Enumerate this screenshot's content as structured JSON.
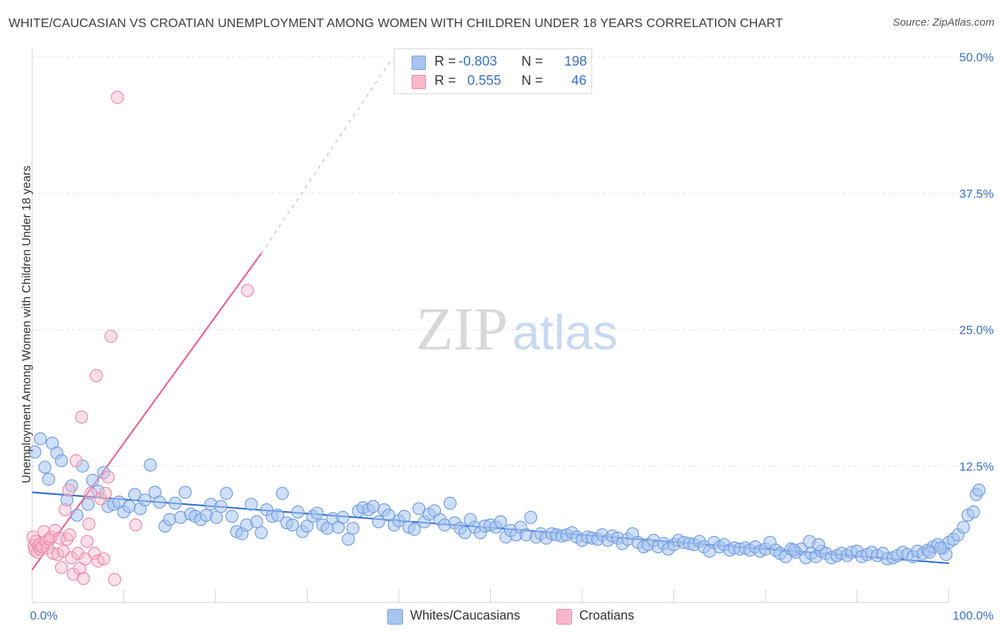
{
  "title": "WHITE/CAUCASIAN VS CROATIAN UNEMPLOYMENT AMONG WOMEN WITH CHILDREN UNDER 18 YEARS CORRELATION CHART",
  "source": "Source: ZipAtlas.com",
  "watermark": {
    "part1": "ZIP",
    "part2": "atlas"
  },
  "legend": {
    "r_label": "R =",
    "n_label": "N =",
    "rows": [
      {
        "r": "-0.803",
        "n": "198",
        "color": "#a8c4f0",
        "border": "#6f9be0"
      },
      {
        "r": "0.555",
        "n": "46",
        "color": "#f7b8cb",
        "border": "#ea8aa8"
      }
    ]
  },
  "bottom_legend": {
    "series1": "Whites/Caucasians",
    "series2": "Croatians"
  },
  "chart_data": {
    "type": "scatter",
    "title": "WHITE/CAUCASIAN VS CROATIAN UNEMPLOYMENT AMONG WOMEN WITH CHILDREN UNDER 18 YEARS CORRELATION CHART",
    "xlabel": "",
    "ylabel": "Unemployment Among Women with Children Under 18 years",
    "xlim": [
      0,
      100
    ],
    "ylim": [
      0,
      52
    ],
    "x_tick_labels": [
      "0.0%",
      "100.0%"
    ],
    "y_ticks": [
      12.5,
      25.0,
      37.5,
      50.0
    ],
    "y_tick_labels": [
      "12.5%",
      "25.0%",
      "37.5%",
      "50.0%"
    ],
    "grid": "horizontal dashed",
    "legend_position": "top-center",
    "colors": {
      "blue": "#6f9be0",
      "blue_fill": "#a8c4f0",
      "pink": "#ea8aa8",
      "pink_fill": "#f7b8cb",
      "blue_line": "#2f6fcf",
      "pink_line": "#e8618f",
      "tick_label": "#3b6fc4"
    },
    "series": [
      {
        "name": "Whites/Caucasians",
        "trend": {
          "x": [
            0,
            100
          ],
          "y": [
            10.1,
            3.6
          ]
        },
        "points": [
          [
            0.3,
            13.8
          ],
          [
            0.9,
            15.0
          ],
          [
            1.4,
            12.4
          ],
          [
            1.8,
            11.3
          ],
          [
            2.2,
            14.6
          ],
          [
            2.7,
            13.7
          ],
          [
            3.2,
            13.0
          ],
          [
            3.8,
            9.4
          ],
          [
            4.3,
            10.7
          ],
          [
            4.9,
            8.0
          ],
          [
            5.5,
            12.5
          ],
          [
            6.1,
            9.0
          ],
          [
            6.6,
            11.2
          ],
          [
            7.2,
            10.2
          ],
          [
            7.8,
            11.9
          ],
          [
            8.3,
            8.8
          ],
          [
            8.9,
            9.0
          ],
          [
            9.5,
            9.2
          ],
          [
            10.0,
            8.3
          ],
          [
            10.6,
            8.8
          ],
          [
            11.2,
            9.9
          ],
          [
            11.8,
            8.6
          ],
          [
            12.3,
            9.4
          ],
          [
            12.9,
            12.6
          ],
          [
            13.4,
            10.1
          ],
          [
            13.9,
            9.2
          ],
          [
            14.5,
            7.0
          ],
          [
            15.0,
            7.6
          ],
          [
            15.6,
            9.1
          ],
          [
            16.2,
            7.8
          ],
          [
            16.7,
            10.1
          ],
          [
            17.3,
            8.1
          ],
          [
            17.8,
            7.9
          ],
          [
            18.4,
            7.6
          ],
          [
            19.0,
            8.0
          ],
          [
            19.5,
            9.0
          ],
          [
            20.1,
            7.8
          ],
          [
            20.6,
            8.8
          ],
          [
            21.2,
            10.0
          ],
          [
            21.8,
            7.9
          ],
          [
            22.3,
            6.5
          ],
          [
            22.9,
            6.3
          ],
          [
            23.4,
            7.1
          ],
          [
            23.9,
            9.0
          ],
          [
            24.5,
            7.4
          ],
          [
            25.0,
            6.4
          ],
          [
            25.6,
            8.5
          ],
          [
            26.2,
            7.9
          ],
          [
            26.8,
            8.0
          ],
          [
            27.3,
            10.0
          ],
          [
            27.8,
            7.3
          ],
          [
            28.4,
            7.1
          ],
          [
            29.0,
            8.3
          ],
          [
            29.5,
            6.5
          ],
          [
            30.0,
            7.0
          ],
          [
            30.6,
            7.9
          ],
          [
            31.1,
            8.2
          ],
          [
            31.7,
            7.1
          ],
          [
            32.2,
            6.8
          ],
          [
            32.8,
            7.7
          ],
          [
            33.4,
            6.9
          ],
          [
            33.9,
            7.8
          ],
          [
            34.5,
            5.8
          ],
          [
            35.0,
            6.8
          ],
          [
            35.6,
            8.4
          ],
          [
            36.1,
            8.7
          ],
          [
            36.7,
            8.5
          ],
          [
            37.2,
            8.8
          ],
          [
            37.8,
            7.4
          ],
          [
            38.4,
            8.5
          ],
          [
            38.9,
            8.0
          ],
          [
            39.5,
            7.1
          ],
          [
            40.0,
            7.5
          ],
          [
            40.6,
            7.9
          ],
          [
            41.1,
            6.9
          ],
          [
            41.7,
            6.7
          ],
          [
            42.2,
            8.6
          ],
          [
            42.8,
            7.4
          ],
          [
            43.3,
            8.1
          ],
          [
            43.9,
            8.4
          ],
          [
            44.5,
            7.6
          ],
          [
            45.0,
            7.1
          ],
          [
            45.6,
            9.1
          ],
          [
            46.1,
            7.3
          ],
          [
            46.7,
            6.8
          ],
          [
            47.2,
            6.4
          ],
          [
            47.8,
            7.6
          ],
          [
            48.3,
            6.9
          ],
          [
            48.9,
            6.4
          ],
          [
            49.4,
            7.0
          ],
          [
            50.0,
            7.1
          ],
          [
            50.6,
            6.9
          ],
          [
            51.1,
            7.4
          ],
          [
            51.7,
            6.0
          ],
          [
            52.2,
            6.6
          ],
          [
            52.8,
            6.2
          ],
          [
            53.3,
            6.9
          ],
          [
            53.9,
            6.2
          ],
          [
            54.4,
            7.8
          ],
          [
            55.0,
            6.0
          ],
          [
            55.5,
            6.3
          ],
          [
            56.1,
            5.9
          ],
          [
            56.7,
            6.3
          ],
          [
            57.2,
            6.2
          ],
          [
            57.8,
            6.1
          ],
          [
            58.3,
            6.2
          ],
          [
            58.9,
            6.4
          ],
          [
            59.4,
            6.0
          ],
          [
            60.0,
            5.7
          ],
          [
            60.6,
            6.0
          ],
          [
            61.1,
            5.9
          ],
          [
            61.7,
            5.8
          ],
          [
            62.2,
            6.2
          ],
          [
            62.8,
            5.7
          ],
          [
            63.3,
            6.1
          ],
          [
            63.9,
            5.9
          ],
          [
            64.4,
            5.4
          ],
          [
            65.0,
            5.8
          ],
          [
            65.5,
            6.3
          ],
          [
            66.1,
            5.5
          ],
          [
            66.7,
            5.1
          ],
          [
            67.2,
            5.3
          ],
          [
            67.8,
            5.7
          ],
          [
            68.3,
            5.1
          ],
          [
            68.9,
            5.4
          ],
          [
            69.4,
            4.9
          ],
          [
            70.0,
            5.3
          ],
          [
            70.5,
            5.7
          ],
          [
            71.1,
            5.5
          ],
          [
            71.7,
            5.4
          ],
          [
            72.2,
            5.3
          ],
          [
            72.8,
            5.6
          ],
          [
            73.3,
            5.1
          ],
          [
            73.9,
            4.7
          ],
          [
            74.4,
            5.5
          ],
          [
            75.0,
            5.1
          ],
          [
            75.5,
            5.3
          ],
          [
            76.1,
            4.8
          ],
          [
            76.6,
            5.0
          ],
          [
            77.2,
            4.9
          ],
          [
            77.8,
            5.0
          ],
          [
            78.3,
            4.8
          ],
          [
            78.9,
            5.1
          ],
          [
            79.4,
            4.7
          ],
          [
            80.0,
            4.9
          ],
          [
            80.5,
            5.5
          ],
          [
            81.1,
            4.8
          ],
          [
            81.6,
            4.5
          ],
          [
            82.2,
            4.2
          ],
          [
            82.8,
            4.9
          ],
          [
            83.3,
            4.6
          ],
          [
            83.9,
            4.9
          ],
          [
            84.4,
            4.1
          ],
          [
            85.0,
            4.5
          ],
          [
            85.5,
            4.2
          ],
          [
            86.1,
            4.7
          ],
          [
            86.6,
            4.5
          ],
          [
            87.2,
            4.1
          ],
          [
            87.8,
            4.3
          ],
          [
            88.3,
            4.5
          ],
          [
            88.9,
            4.3
          ],
          [
            89.4,
            4.6
          ],
          [
            90.0,
            4.7
          ],
          [
            90.5,
            4.2
          ],
          [
            91.1,
            4.4
          ],
          [
            91.6,
            4.6
          ],
          [
            92.2,
            4.3
          ],
          [
            92.8,
            4.5
          ],
          [
            93.3,
            4.0
          ],
          [
            93.9,
            4.1
          ],
          [
            94.4,
            4.3
          ],
          [
            95.0,
            4.6
          ],
          [
            95.5,
            4.4
          ],
          [
            96.1,
            4.2
          ],
          [
            96.6,
            4.7
          ],
          [
            97.2,
            4.5
          ],
          [
            97.7,
            4.8
          ],
          [
            98.3,
            5.1
          ],
          [
            98.8,
            5.3
          ],
          [
            99.4,
            5.0
          ],
          [
            99.7,
            4.4
          ],
          [
            100.0,
            5.5
          ],
          [
            100.5,
            5.8
          ],
          [
            101.0,
            6.2
          ],
          [
            101.6,
            6.9
          ],
          [
            102.1,
            8.0
          ],
          [
            102.7,
            8.3
          ],
          [
            103.0,
            9.9
          ],
          [
            103.3,
            10.3
          ],
          [
            99.1,
            5.0
          ],
          [
            97.9,
            4.6
          ],
          [
            83.1,
            4.8
          ],
          [
            84.8,
            5.6
          ],
          [
            85.8,
            5.3
          ]
        ]
      },
      {
        "name": "Croatians",
        "trend": {
          "x": [
            0,
            25
          ],
          "y": [
            3.0,
            32.0
          ],
          "dashed_extension": {
            "x": [
              25,
              39.3
            ],
            "y": [
              32.0,
              49.9
            ]
          }
        },
        "points": [
          [
            0.1,
            6.0
          ],
          [
            0.2,
            5.2
          ],
          [
            0.3,
            4.8
          ],
          [
            0.4,
            5.6
          ],
          [
            0.6,
            4.6
          ],
          [
            0.8,
            5.3
          ],
          [
            0.9,
            4.9
          ],
          [
            1.1,
            5.1
          ],
          [
            1.3,
            6.5
          ],
          [
            1.5,
            5.6
          ],
          [
            1.7,
            5.0
          ],
          [
            1.9,
            5.8
          ],
          [
            2.1,
            6.0
          ],
          [
            2.3,
            4.5
          ],
          [
            2.5,
            6.6
          ],
          [
            2.8,
            4.4
          ],
          [
            3.0,
            5.9
          ],
          [
            3.2,
            3.2
          ],
          [
            3.4,
            4.7
          ],
          [
            3.6,
            8.5
          ],
          [
            3.8,
            5.8
          ],
          [
            4.0,
            10.3
          ],
          [
            4.1,
            6.2
          ],
          [
            4.3,
            4.1
          ],
          [
            4.5,
            2.6
          ],
          [
            4.8,
            13.0
          ],
          [
            5.0,
            4.5
          ],
          [
            5.2,
            3.1
          ],
          [
            5.4,
            17.0
          ],
          [
            5.6,
            2.2
          ],
          [
            5.8,
            4.0
          ],
          [
            6.0,
            5.6
          ],
          [
            6.2,
            7.2
          ],
          [
            6.4,
            10.0
          ],
          [
            6.8,
            4.5
          ],
          [
            7.0,
            20.8
          ],
          [
            7.2,
            3.8
          ],
          [
            7.5,
            9.5
          ],
          [
            7.8,
            4.0
          ],
          [
            8.0,
            10.0
          ],
          [
            8.3,
            11.5
          ],
          [
            8.6,
            24.4
          ],
          [
            9.0,
            2.1
          ],
          [
            9.3,
            46.3
          ],
          [
            23.5,
            28.6
          ],
          [
            11.3,
            7.1
          ]
        ]
      }
    ]
  }
}
